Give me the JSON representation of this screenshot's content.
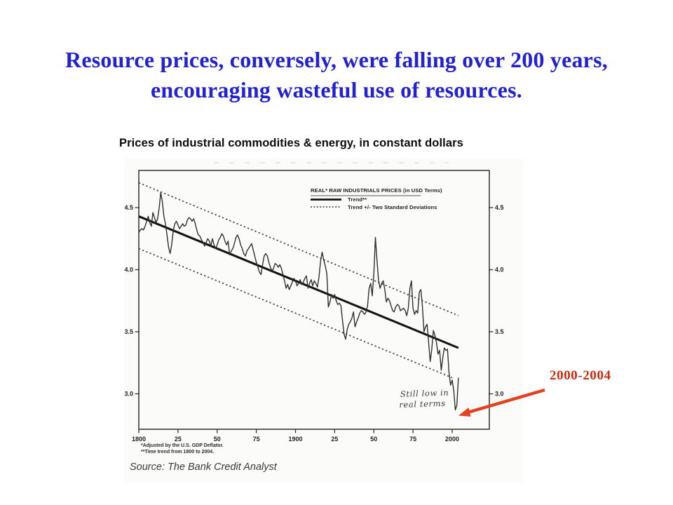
{
  "slide": {
    "title_line1": "Resource prices, conversely, were falling over 200 years,",
    "title_line2": "encouraging wasteful use of resources.",
    "title_color": "#2222d0"
  },
  "chart_heading": "Prices of industrial commodities & energy, in constant dollars",
  "source": "Source: The Bank Credit Analyst",
  "callout": {
    "label": "2000-2004",
    "text_color": "#cf2d10",
    "arrow_color": "#e2421c"
  },
  "chart_data": {
    "type": "line",
    "title": "REAL* RAW INDUSTRIALS PRICES (in USD Terms)",
    "legend": [
      "REAL* RAW INDUSTRIALS PRICES (in USD Terms)",
      "Trend**",
      "Trend +/- Two Standard Deviations"
    ],
    "legend_position": "top-right-inside",
    "grid": false,
    "annotation_line1": "Still low in",
    "annotation_line2": "real terms",
    "footnotes": [
      "*Adjusted by the U.S. GDP Deflator.",
      "**Time trend from 1800 to 2004."
    ],
    "x_axis": {
      "tick_years": [
        1800,
        1825,
        1850,
        1875,
        1900,
        1925,
        1950,
        1975,
        2000
      ],
      "tick_labels": [
        "1800",
        "25",
        "50",
        "75",
        "1900",
        "25",
        "50",
        "75",
        "2000"
      ],
      "range": [
        1800,
        2024
      ]
    },
    "y_axis": {
      "tick_values": [
        4.5,
        4.0,
        3.5,
        3.0
      ],
      "tick_labels": [
        "4.5",
        "4.0",
        "3.5",
        "3.0"
      ],
      "range": [
        2.71,
        4.81
      ],
      "sides": "both"
    },
    "series": [
      {
        "name": "real_raw_industrials_prices",
        "style": "noisy-line",
        "points": [
          [
            1800,
            4.3
          ],
          [
            1801,
            4.32
          ],
          [
            1802,
            4.33
          ],
          [
            1803,
            4.32
          ],
          [
            1804,
            4.35
          ],
          [
            1805,
            4.39
          ],
          [
            1806,
            4.43
          ],
          [
            1807,
            4.38
          ],
          [
            1808,
            4.35
          ],
          [
            1809,
            4.46
          ],
          [
            1810,
            4.42
          ],
          [
            1811,
            4.38
          ],
          [
            1812,
            4.41
          ],
          [
            1813,
            4.5
          ],
          [
            1814,
            4.62
          ],
          [
            1815,
            4.55
          ],
          [
            1816,
            4.43
          ],
          [
            1817,
            4.37
          ],
          [
            1818,
            4.28
          ],
          [
            1819,
            4.18
          ],
          [
            1820,
            4.13
          ],
          [
            1821,
            4.2
          ],
          [
            1822,
            4.32
          ],
          [
            1823,
            4.37
          ],
          [
            1824,
            4.39
          ],
          [
            1825,
            4.36
          ],
          [
            1826,
            4.33
          ],
          [
            1827,
            4.35
          ],
          [
            1828,
            4.37
          ],
          [
            1829,
            4.35
          ],
          [
            1830,
            4.36
          ],
          [
            1831,
            4.4
          ],
          [
            1832,
            4.42
          ],
          [
            1833,
            4.41
          ],
          [
            1834,
            4.39
          ],
          [
            1835,
            4.41
          ],
          [
            1836,
            4.37
          ],
          [
            1837,
            4.32
          ],
          [
            1838,
            4.28
          ],
          [
            1839,
            4.27
          ],
          [
            1840,
            4.24
          ],
          [
            1841,
            4.22
          ],
          [
            1842,
            4.19
          ],
          [
            1843,
            4.22
          ],
          [
            1844,
            4.25
          ],
          [
            1845,
            4.23
          ],
          [
            1846,
            4.19
          ],
          [
            1847,
            4.25
          ],
          [
            1848,
            4.2
          ],
          [
            1849,
            4.17
          ],
          [
            1850,
            4.2
          ],
          [
            1851,
            4.24
          ],
          [
            1852,
            4.26
          ],
          [
            1853,
            4.29
          ],
          [
            1854,
            4.27
          ],
          [
            1855,
            4.23
          ],
          [
            1856,
            4.2
          ],
          [
            1857,
            4.23
          ],
          [
            1858,
            4.12
          ],
          [
            1859,
            4.15
          ],
          [
            1860,
            4.17
          ],
          [
            1861,
            4.21
          ],
          [
            1862,
            4.26
          ],
          [
            1863,
            4.28
          ],
          [
            1864,
            4.25
          ],
          [
            1865,
            4.2
          ],
          [
            1866,
            4.17
          ],
          [
            1867,
            4.13
          ],
          [
            1868,
            4.11
          ],
          [
            1869,
            4.15
          ],
          [
            1870,
            4.17
          ],
          [
            1871,
            4.19
          ],
          [
            1872,
            4.21
          ],
          [
            1873,
            4.16
          ],
          [
            1874,
            4.11
          ],
          [
            1875,
            4.06
          ],
          [
            1876,
            4.02
          ],
          [
            1877,
            3.98
          ],
          [
            1878,
            3.96
          ],
          [
            1879,
            4.04
          ],
          [
            1880,
            4.11
          ],
          [
            1881,
            4.13
          ],
          [
            1882,
            4.11
          ],
          [
            1883,
            4.06
          ],
          [
            1884,
            4.02
          ],
          [
            1885,
            3.99
          ],
          [
            1886,
            4.01
          ],
          [
            1887,
            4.05
          ],
          [
            1888,
            4.04
          ],
          [
            1889,
            4.02
          ],
          [
            1890,
            4.04
          ],
          [
            1891,
            4.01
          ],
          [
            1892,
            3.96
          ],
          [
            1893,
            3.91
          ],
          [
            1894,
            3.85
          ],
          [
            1895,
            3.88
          ],
          [
            1896,
            3.84
          ],
          [
            1897,
            3.87
          ],
          [
            1898,
            3.9
          ],
          [
            1899,
            3.93
          ],
          [
            1900,
            3.91
          ],
          [
            1901,
            3.87
          ],
          [
            1902,
            3.89
          ],
          [
            1903,
            3.92
          ],
          [
            1904,
            3.88
          ],
          [
            1905,
            3.9
          ],
          [
            1906,
            3.93
          ],
          [
            1907,
            3.95
          ],
          [
            1908,
            3.85
          ],
          [
            1909,
            3.89
          ],
          [
            1910,
            3.92
          ],
          [
            1911,
            3.87
          ],
          [
            1912,
            3.91
          ],
          [
            1913,
            3.89
          ],
          [
            1914,
            3.86
          ],
          [
            1915,
            3.94
          ],
          [
            1916,
            4.07
          ],
          [
            1917,
            4.14
          ],
          [
            1918,
            4.08
          ],
          [
            1919,
            4.03
          ],
          [
            1920,
            3.97
          ],
          [
            1921,
            3.7
          ],
          [
            1922,
            3.74
          ],
          [
            1923,
            3.8
          ],
          [
            1924,
            3.77
          ],
          [
            1925,
            3.8
          ],
          [
            1926,
            3.75
          ],
          [
            1927,
            3.72
          ],
          [
            1928,
            3.73
          ],
          [
            1929,
            3.71
          ],
          [
            1930,
            3.59
          ],
          [
            1931,
            3.48
          ],
          [
            1932,
            3.44
          ],
          [
            1933,
            3.52
          ],
          [
            1934,
            3.56
          ],
          [
            1935,
            3.58
          ],
          [
            1936,
            3.61
          ],
          [
            1937,
            3.66
          ],
          [
            1938,
            3.54
          ],
          [
            1939,
            3.58
          ],
          [
            1940,
            3.61
          ],
          [
            1941,
            3.65
          ],
          [
            1942,
            3.67
          ],
          [
            1943,
            3.66
          ],
          [
            1944,
            3.64
          ],
          [
            1945,
            3.66
          ],
          [
            1946,
            3.71
          ],
          [
            1947,
            3.85
          ],
          [
            1948,
            3.89
          ],
          [
            1949,
            3.79
          ],
          [
            1950,
            3.97
          ],
          [
            1951,
            4.26
          ],
          [
            1952,
            4.08
          ],
          [
            1953,
            3.91
          ],
          [
            1954,
            3.85
          ],
          [
            1955,
            3.89
          ],
          [
            1956,
            3.91
          ],
          [
            1957,
            3.84
          ],
          [
            1958,
            3.74
          ],
          [
            1959,
            3.77
          ],
          [
            1960,
            3.75
          ],
          [
            1961,
            3.71
          ],
          [
            1962,
            3.67
          ],
          [
            1963,
            3.66
          ],
          [
            1964,
            3.7
          ],
          [
            1965,
            3.72
          ],
          [
            1966,
            3.71
          ],
          [
            1967,
            3.67
          ],
          [
            1968,
            3.68
          ],
          [
            1969,
            3.69
          ],
          [
            1970,
            3.67
          ],
          [
            1971,
            3.63
          ],
          [
            1972,
            3.69
          ],
          [
            1973,
            3.85
          ],
          [
            1974,
            3.91
          ],
          [
            1975,
            3.69
          ],
          [
            1976,
            3.64
          ],
          [
            1977,
            3.67
          ],
          [
            1978,
            3.65
          ],
          [
            1979,
            3.82
          ],
          [
            1980,
            3.84
          ],
          [
            1981,
            3.71
          ],
          [
            1982,
            3.5
          ],
          [
            1983,
            3.54
          ],
          [
            1984,
            3.56
          ],
          [
            1985,
            3.41
          ],
          [
            1986,
            3.26
          ],
          [
            1987,
            3.36
          ],
          [
            1988,
            3.51
          ],
          [
            1989,
            3.47
          ],
          [
            1990,
            3.41
          ],
          [
            1991,
            3.32
          ],
          [
            1992,
            3.35
          ],
          [
            1993,
            3.19
          ],
          [
            1994,
            3.29
          ],
          [
            1995,
            3.37
          ],
          [
            1996,
            3.35
          ],
          [
            1997,
            3.36
          ],
          [
            1998,
            3.17
          ],
          [
            1999,
            3.07
          ],
          [
            2000,
            3.11
          ],
          [
            2001,
            3.03
          ],
          [
            2002,
            2.87
          ],
          [
            2003,
            2.91
          ],
          [
            2004,
            3.13
          ]
        ]
      },
      {
        "name": "trend",
        "style": "solid-thick",
        "points": [
          [
            1800,
            4.43
          ],
          [
            2004,
            3.37
          ]
        ]
      },
      {
        "name": "trend_plus_2sd",
        "style": "dashed",
        "points": [
          [
            1800,
            4.7
          ],
          [
            2004,
            3.63
          ]
        ]
      },
      {
        "name": "trend_minus_2sd",
        "style": "dashed",
        "points": [
          [
            1800,
            4.17
          ],
          [
            2000,
            3.13
          ]
        ]
      }
    ]
  }
}
